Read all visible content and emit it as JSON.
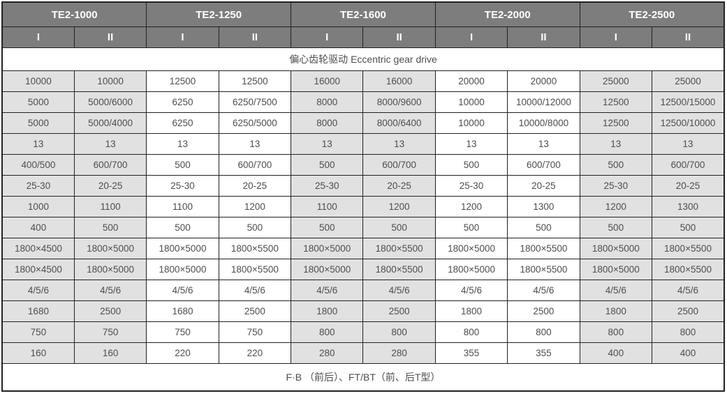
{
  "colors": {
    "header_bg": "#7d7d7d",
    "header_text": "#ffffff",
    "shaded_bg": "#e1e1e1",
    "cell_text": "#4d4d4d",
    "border": "#212121"
  },
  "models": [
    {
      "name": "TE2-1000"
    },
    {
      "name": "TE2-1250"
    },
    {
      "name": "TE2-1600"
    },
    {
      "name": "TE2-2000"
    },
    {
      "name": "TE2-2500"
    }
  ],
  "subheaders": [
    "I",
    "II",
    "I",
    "II",
    "I",
    "II",
    "I",
    "II",
    "I",
    "II"
  ],
  "drive_row_label": "偏心齿轮驱动  Eccentric gear drive",
  "shaded_columns": [
    0,
    1,
    4,
    5,
    8,
    9
  ],
  "rows": [
    [
      "10000",
      "10000",
      "12500",
      "12500",
      "16000",
      "16000",
      "20000",
      "20000",
      "25000",
      "25000"
    ],
    [
      "5000",
      "5000/6000",
      "6250",
      "6250/7500",
      "8000",
      "8000/9600",
      "10000",
      "10000/12000",
      "12500",
      "12500/15000"
    ],
    [
      "5000",
      "5000/4000",
      "6250",
      "6250/5000",
      "8000",
      "8000/6400",
      "10000",
      "10000/8000",
      "12500",
      "12500/10000"
    ],
    [
      "13",
      "13",
      "13",
      "13",
      "13",
      "13",
      "13",
      "13",
      "13",
      "13"
    ],
    [
      "400/500",
      "600/700",
      "500",
      "600/700",
      "500",
      "600/700",
      "500",
      "600/700",
      "500",
      "600/700"
    ],
    [
      "25-30",
      "20-25",
      "25-30",
      "20-25",
      "25-30",
      "20-25",
      "25-30",
      "20-25",
      "25-30",
      "20-25"
    ],
    [
      "1000",
      "1100",
      "1100",
      "1200",
      "1100",
      "1200",
      "1200",
      "1300",
      "1200",
      "1300"
    ],
    [
      "400",
      "500",
      "500",
      "500",
      "500",
      "500",
      "500",
      "500",
      "500",
      "500"
    ],
    [
      "1800×4500",
      "1800×5000",
      "1800×5000",
      "1800×5500",
      "1800×5000",
      "1800×5500",
      "1800×5000",
      "1800×5500",
      "1800×5000",
      "1800×5500"
    ],
    [
      "1800×4500",
      "1800×5000",
      "1800×5000",
      "1800×5500",
      "1800×5000",
      "1800×5500",
      "1800×5000",
      "1800×5500",
      "1800×5000",
      "1800×5500"
    ],
    [
      "4/5/6",
      "4/5/6",
      "4/5/6",
      "4/5/6",
      "4/5/6",
      "4/5/6",
      "4/5/6",
      "4/5/6",
      "4/5/6",
      "4/5/6"
    ],
    [
      "1680",
      "2500",
      "1680",
      "2500",
      "1800",
      "2500",
      "1800",
      "2500",
      "1800",
      "2500"
    ],
    [
      "750",
      "750",
      "750",
      "750",
      "800",
      "800",
      "800",
      "800",
      "800",
      "800"
    ],
    [
      "160",
      "160",
      "220",
      "220",
      "280",
      "280",
      "355",
      "355",
      "400",
      "400"
    ]
  ],
  "footer_label": "F·B （前后）、FT/BT（前、后T型）"
}
